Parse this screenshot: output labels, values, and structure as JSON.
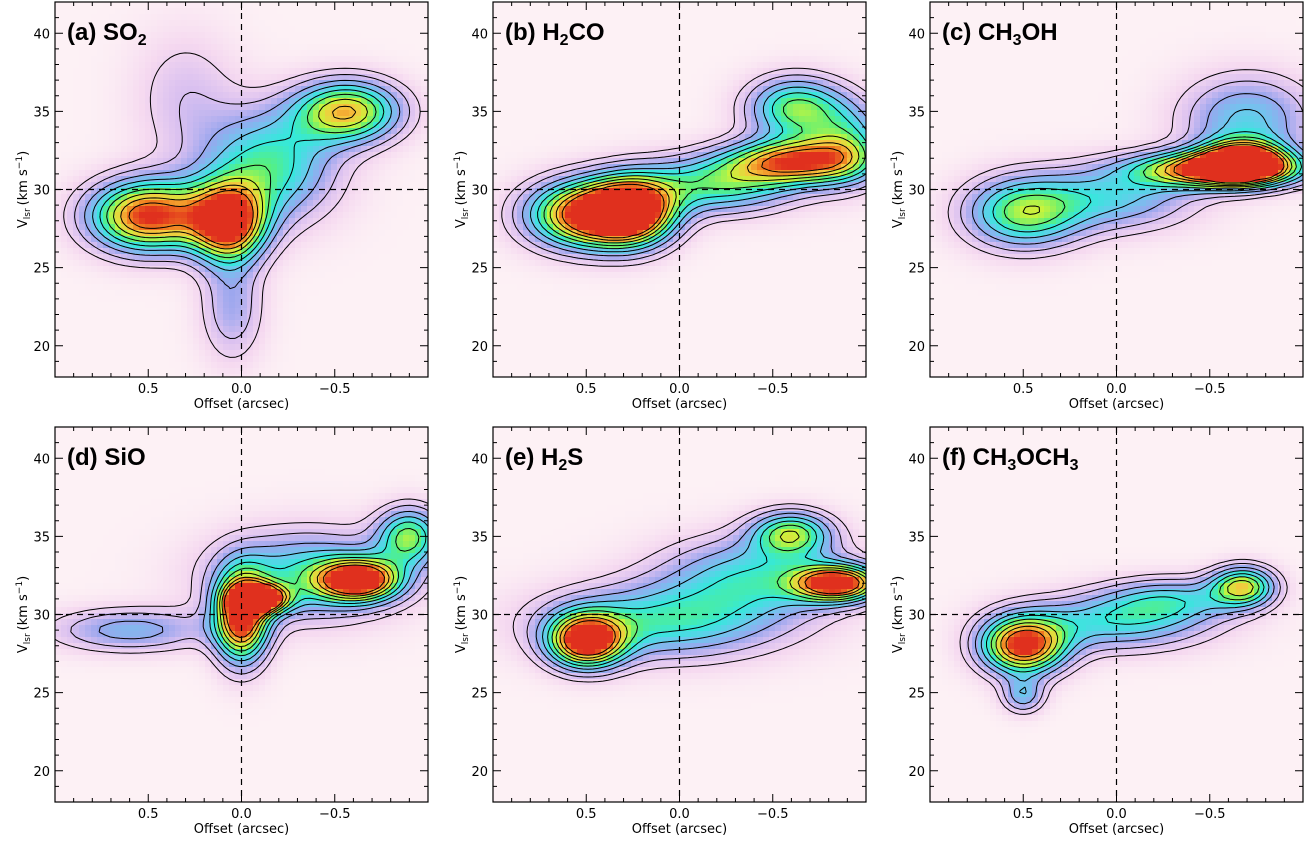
{
  "figure": {
    "xlabel": "Offset (arcsec)",
    "ylabel": "V",
    "ylabel_sub": "lsr",
    "ylabel_unit": "(km s",
    "ylabel_unit_sup": "−1",
    "ylabel_unit_close": ")"
  },
  "colors": {
    "background": "#ffffff",
    "contour": "#000000",
    "colormap": [
      "#fdf1f5",
      "#f5d8f0",
      "#d8bff0",
      "#9aa6ee",
      "#6fc6ee",
      "#35e8dc",
      "#59f07a",
      "#c8f43c",
      "#f6c73e",
      "#f07a1f",
      "#e0301e"
    ]
  },
  "chart_data": [
    {
      "type": "heatmap",
      "title": "(a) SO",
      "title_sub": "2",
      "title_tail": "",
      "xlim": [
        1.0,
        -1.0
      ],
      "ylim": [
        18,
        42
      ],
      "x_ticks": [
        0.5,
        0.0,
        -0.5
      ],
      "x_tick_labels": [
        "0.5",
        "0.0",
        "−0.5"
      ],
      "y_ticks": [
        20,
        25,
        30,
        35,
        40
      ],
      "y_tick_labels": [
        "20",
        "25",
        "30",
        "35",
        "40"
      ],
      "ref_x": 0.0,
      "ref_y": 30,
      "blobs": [
        {
          "x": 0.5,
          "y": 28.3,
          "sx": 0.22,
          "sy": 1.6,
          "a": 1.0
        },
        {
          "x": 0.07,
          "y": 27.9,
          "sx": 0.14,
          "sy": 1.7,
          "a": 1.0
        },
        {
          "x": -0.57,
          "y": 35.0,
          "sx": 0.2,
          "sy": 1.4,
          "a": 0.78
        },
        {
          "x": -0.15,
          "y": 31.5,
          "sx": 0.25,
          "sy": 2.5,
          "a": 0.55
        },
        {
          "x": 0.05,
          "y": 22.5,
          "sx": 0.12,
          "sy": 2.5,
          "a": 0.28
        },
        {
          "x": 0.3,
          "y": 36.0,
          "sx": 0.2,
          "sy": 3.0,
          "a": 0.18
        }
      ]
    },
    {
      "type": "heatmap",
      "title": "(b) H",
      "title_sub": "2",
      "title_tail": "CO",
      "xlim": [
        1.0,
        -1.0
      ],
      "ylim": [
        18,
        42
      ],
      "x_ticks": [
        0.5,
        0.0,
        -0.5
      ],
      "x_tick_labels": [
        "0.5",
        "0.0",
        "−0.5"
      ],
      "y_ticks": [
        20,
        25,
        30,
        35,
        40
      ],
      "y_tick_labels": [
        "20",
        "25",
        "30",
        "35",
        "40"
      ],
      "ref_x": 0.0,
      "ref_y": 30,
      "blobs": [
        {
          "x": 0.5,
          "y": 28.4,
          "sx": 0.22,
          "sy": 1.5,
          "a": 1.0
        },
        {
          "x": 0.25,
          "y": 28.6,
          "sx": 0.16,
          "sy": 1.5,
          "a": 0.95
        },
        {
          "x": -0.62,
          "y": 31.8,
          "sx": 0.25,
          "sy": 1.0,
          "a": 0.85
        },
        {
          "x": -0.62,
          "y": 35.2,
          "sx": 0.18,
          "sy": 1.4,
          "a": 0.62
        },
        {
          "x": -0.2,
          "y": 30.3,
          "sx": 0.3,
          "sy": 1.3,
          "a": 0.55
        },
        {
          "x": -0.9,
          "y": 33.0,
          "sx": 0.15,
          "sy": 1.8,
          "a": 0.45
        }
      ]
    },
    {
      "type": "heatmap",
      "title": "(c) CH",
      "title_sub": "3",
      "title_tail": "OH",
      "xlim": [
        1.0,
        -1.0
      ],
      "ylim": [
        18,
        42
      ],
      "x_ticks": [
        0.5,
        0.0,
        -0.5
      ],
      "x_tick_labels": [
        "0.5",
        "0.0",
        "−0.5"
      ],
      "y_ticks": [
        20,
        25,
        30,
        35,
        40
      ],
      "y_tick_labels": [
        "20",
        "25",
        "30",
        "35",
        "40"
      ],
      "ref_x": 0.0,
      "ref_y": 30,
      "blobs": [
        {
          "x": -0.55,
          "y": 31.3,
          "sx": 0.3,
          "sy": 0.8,
          "a": 1.0
        },
        {
          "x": -0.68,
          "y": 31.8,
          "sx": 0.15,
          "sy": 0.9,
          "a": 0.95
        },
        {
          "x": 0.5,
          "y": 28.5,
          "sx": 0.22,
          "sy": 1.6,
          "a": 0.62
        },
        {
          "x": -0.7,
          "y": 34.5,
          "sx": 0.25,
          "sy": 2.0,
          "a": 0.42
        },
        {
          "x": 0.0,
          "y": 29.5,
          "sx": 0.3,
          "sy": 1.5,
          "a": 0.4
        }
      ]
    },
    {
      "type": "heatmap",
      "title": "(d) SiO",
      "title_sub": "",
      "title_tail": "",
      "xlim": [
        1.0,
        -1.0
      ],
      "ylim": [
        18,
        42
      ],
      "x_ticks": [
        0.5,
        0.0,
        -0.5
      ],
      "x_tick_labels": [
        "0.5",
        "0.0",
        "−0.5"
      ],
      "y_ticks": [
        20,
        25,
        30,
        35,
        40
      ],
      "y_tick_labels": [
        "20",
        "25",
        "30",
        "35",
        "40"
      ],
      "ref_x": 0.0,
      "ref_y": 30,
      "blobs": [
        {
          "x": 0.0,
          "y": 29.8,
          "sx": 0.1,
          "sy": 2.0,
          "a": 1.0
        },
        {
          "x": -0.1,
          "y": 31.0,
          "sx": 0.1,
          "sy": 0.6,
          "a": 1.0
        },
        {
          "x": -0.63,
          "y": 32.2,
          "sx": 0.15,
          "sy": 0.9,
          "a": 0.95
        },
        {
          "x": -0.9,
          "y": 35.0,
          "sx": 0.12,
          "sy": 1.3,
          "a": 0.6
        },
        {
          "x": -0.35,
          "y": 32.5,
          "sx": 0.35,
          "sy": 2.0,
          "a": 0.5
        },
        {
          "x": 0.6,
          "y": 29.0,
          "sx": 0.3,
          "sy": 1.0,
          "a": 0.35
        }
      ]
    },
    {
      "type": "heatmap",
      "title": "(e) H",
      "title_sub": "2",
      "title_tail": "S",
      "xlim": [
        1.0,
        -1.0
      ],
      "ylim": [
        18,
        42
      ],
      "x_ticks": [
        0.5,
        0.0,
        -0.5
      ],
      "x_tick_labels": [
        "0.5",
        "0.0",
        "−0.5"
      ],
      "y_ticks": [
        20,
        25,
        30,
        35,
        40
      ],
      "y_tick_labels": [
        "20",
        "25",
        "30",
        "35",
        "40"
      ],
      "ref_x": 0.0,
      "ref_y": 30,
      "blobs": [
        {
          "x": 0.5,
          "y": 28.3,
          "sx": 0.14,
          "sy": 1.2,
          "a": 1.0
        },
        {
          "x": -0.85,
          "y": 32.0,
          "sx": 0.16,
          "sy": 0.8,
          "a": 1.0
        },
        {
          "x": -0.6,
          "y": 35.2,
          "sx": 0.15,
          "sy": 1.0,
          "a": 0.6
        },
        {
          "x": 0.1,
          "y": 29.5,
          "sx": 0.45,
          "sy": 1.7,
          "a": 0.5
        },
        {
          "x": -0.4,
          "y": 32.5,
          "sx": 0.35,
          "sy": 1.8,
          "a": 0.45
        }
      ]
    },
    {
      "type": "heatmap",
      "title": "(f) CH",
      "title_sub": "3",
      "title_tail": "OCH",
      "title_sub2": "3",
      "xlim": [
        1.0,
        -1.0
      ],
      "ylim": [
        18,
        42
      ],
      "x_ticks": [
        0.5,
        0.0,
        -0.5
      ],
      "x_tick_labels": [
        "0.5",
        "0.0",
        "−0.5"
      ],
      "y_ticks": [
        20,
        25,
        30,
        35,
        40
      ],
      "y_tick_labels": [
        "20",
        "25",
        "30",
        "35",
        "40"
      ],
      "ref_x": 0.0,
      "ref_y": 30,
      "blobs": [
        {
          "x": 0.5,
          "y": 28.0,
          "sx": 0.16,
          "sy": 1.3,
          "a": 1.0
        },
        {
          "x": -0.68,
          "y": 31.8,
          "sx": 0.12,
          "sy": 0.9,
          "a": 0.7
        },
        {
          "x": 0.0,
          "y": 29.5,
          "sx": 0.35,
          "sy": 1.3,
          "a": 0.45
        },
        {
          "x": 0.5,
          "y": 24.8,
          "sx": 0.08,
          "sy": 0.8,
          "a": 0.35
        },
        {
          "x": -0.3,
          "y": 31.0,
          "sx": 0.25,
          "sy": 1.0,
          "a": 0.35
        }
      ]
    }
  ]
}
